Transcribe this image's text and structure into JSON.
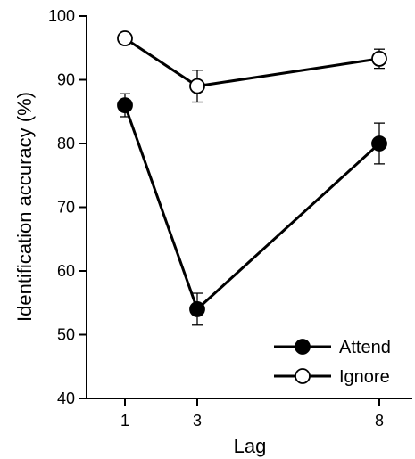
{
  "chart_data": {
    "type": "line",
    "xlabel": "Lag",
    "ylabel": "Identification accuracy (%)",
    "ylim": [
      40,
      100
    ],
    "yticks": [
      40,
      50,
      60,
      70,
      80,
      90,
      100
    ],
    "xlim": [
      0,
      9
    ],
    "xticks": [
      1,
      3,
      8
    ],
    "grid": false,
    "legend": "bottom-right",
    "series": [
      {
        "name": "Attend",
        "marker": "filled-circle",
        "color": "#000000",
        "x": [
          1,
          3,
          8
        ],
        "y": [
          86,
          54,
          80
        ],
        "err": [
          1.8,
          2.5,
          3.2
        ]
      },
      {
        "name": "Ignore",
        "marker": "open-circle",
        "color": "#000000",
        "x": [
          1,
          3,
          8
        ],
        "y": [
          96.5,
          89,
          93.3
        ],
        "err": [
          0.6,
          2.5,
          1.5
        ]
      }
    ]
  }
}
